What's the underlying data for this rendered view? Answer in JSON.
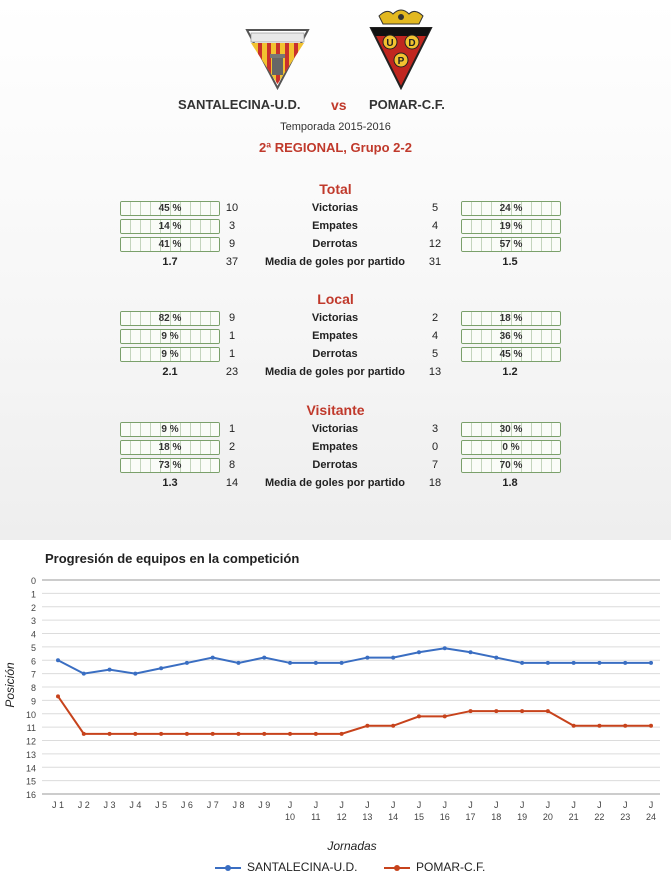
{
  "header": {
    "home_team": "SANTALECINA-U.D.",
    "vs": "vs",
    "away_team": "POMAR-C.F.",
    "season": "Temporada 2015-2016",
    "league": "2ª REGIONAL, Grupo 2-2",
    "home_crest_icon": "santalecina-crest-icon",
    "away_crest_icon": "pomar-crest-icon",
    "away_crest_letters": [
      "U",
      "D",
      "P"
    ]
  },
  "stats": {
    "total": {
      "title": "Total",
      "rows": [
        {
          "label": "Victorias",
          "home_pct": "45 %",
          "home": "10",
          "away": "5",
          "away_pct": "24 %"
        },
        {
          "label": "Empates",
          "home_pct": "14 %",
          "home": "3",
          "away": "4",
          "away_pct": "19 %"
        },
        {
          "label": "Derrotas",
          "home_pct": "41 %",
          "home": "9",
          "away": "12",
          "away_pct": "57 %"
        }
      ],
      "avg": {
        "label": "Media de goles por partido",
        "home_avg": "1.7",
        "home_goals": "37",
        "away_goals": "31",
        "away_avg": "1.5"
      }
    },
    "local": {
      "title": "Local",
      "rows": [
        {
          "label": "Victorias",
          "home_pct": "82 %",
          "home": "9",
          "away": "2",
          "away_pct": "18 %"
        },
        {
          "label": "Empates",
          "home_pct": "9 %",
          "home": "1",
          "away": "4",
          "away_pct": "36 %"
        },
        {
          "label": "Derrotas",
          "home_pct": "9 %",
          "home": "1",
          "away": "5",
          "away_pct": "45 %"
        }
      ],
      "avg": {
        "label": "Media de goles por partido",
        "home_avg": "2.1",
        "home_goals": "23",
        "away_goals": "13",
        "away_avg": "1.2"
      }
    },
    "visitante": {
      "title": "Visitante",
      "rows": [
        {
          "label": "Victorias",
          "home_pct": "9 %",
          "home": "1",
          "away": "3",
          "away_pct": "30 %"
        },
        {
          "label": "Empates",
          "home_pct": "18 %",
          "home": "2",
          "away": "0",
          "away_pct": "0 %"
        },
        {
          "label": "Derrotas",
          "home_pct": "73 %",
          "home": "8",
          "away": "7",
          "away_pct": "70 %"
        }
      ],
      "avg": {
        "label": "Media de goles por partido",
        "home_avg": "1.3",
        "home_goals": "14",
        "away_goals": "18",
        "away_avg": "1.8"
      }
    }
  },
  "chart_data": {
    "type": "line",
    "title": "Progresión de equipos en la competición",
    "xlabel": "Jornadas",
    "ylabel": "Posición",
    "categories": [
      "J 1",
      "J 2",
      "J 3",
      "J 4",
      "J 5",
      "J 6",
      "J 7",
      "J 8",
      "J 9",
      "J 10",
      "J 11",
      "J 12",
      "J 13",
      "J 14",
      "J 15",
      "J 16",
      "J 17",
      "J 18",
      "J 19",
      "J 20",
      "J 21",
      "J 22",
      "J 23",
      "J 24"
    ],
    "y_ticks": [
      "0",
      "1",
      "2",
      "3",
      "4",
      "5",
      "6",
      "7",
      "8",
      "9",
      "10",
      "11",
      "12",
      "13",
      "14",
      "15",
      "16"
    ],
    "ylim": [
      0,
      16
    ],
    "y_inverted": true,
    "grid": true,
    "legend_position": "bottom",
    "series": [
      {
        "name": "SANTALECINA-U.D.",
        "color": "#3a6ec2",
        "values": [
          6,
          7,
          6.7,
          7,
          6.6,
          6.2,
          5.8,
          6.2,
          5.8,
          6.2,
          6.2,
          6.2,
          5.8,
          5.8,
          5.4,
          5.1,
          5.4,
          5.8,
          6.2,
          6.2,
          6.2,
          6.2,
          6.2,
          6.2
        ]
      },
      {
        "name": "POMAR-C.F.",
        "color": "#c7431c",
        "values": [
          8.7,
          11.5,
          11.5,
          11.5,
          11.5,
          11.5,
          11.5,
          11.5,
          11.5,
          11.5,
          11.5,
          11.5,
          10.9,
          10.9,
          10.2,
          10.2,
          9.8,
          9.8,
          9.8,
          9.8,
          10.9,
          10.9,
          10.9,
          10.9
        ]
      }
    ]
  }
}
